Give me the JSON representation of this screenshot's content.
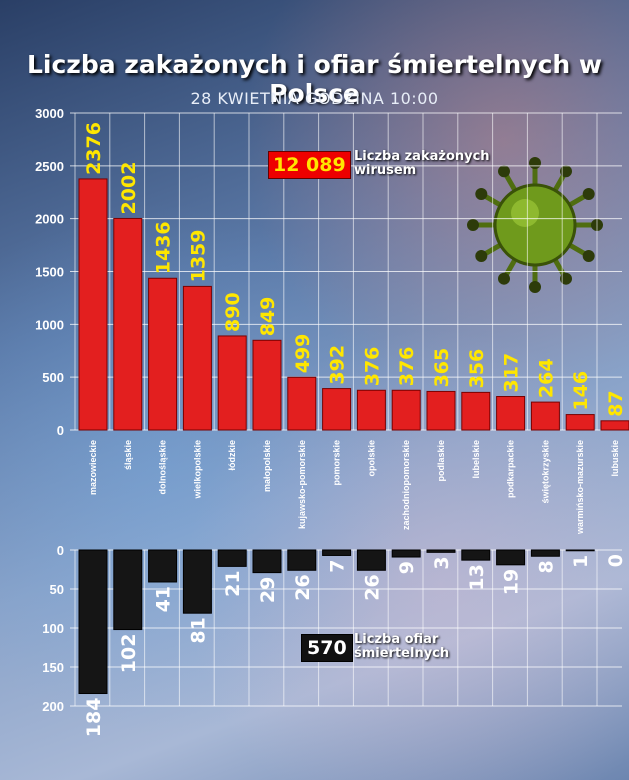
{
  "title": "Liczba zakażonych i ofiar śmiertelnych w Polsce",
  "subtitle": "28 KWIETNIA GODZINA 10:00",
  "legend_infected": {
    "number": "12 089",
    "line1": "Liczba zakażonych",
    "line2": "wirusem"
  },
  "legend_deaths": {
    "number": "570",
    "line1": "Liczba ofiar",
    "line2": "śmiertelnych"
  },
  "colors": {
    "infected_bar": "#e31f1f",
    "death_bar": "#151515",
    "infected_label": "#ffe600"
  },
  "chart_data": [
    {
      "type": "bar",
      "title": "Liczba zakażonych",
      "categories": [
        "mazowieckie",
        "śląskie",
        "dolnośląskie",
        "wielkopolskie",
        "łódzkie",
        "małopolskie",
        "kujawsko-pomorskie",
        "pomorskie",
        "opolskie",
        "zachodniopomorskie",
        "podlaskie",
        "lubelskie",
        "podkarpackie",
        "świętokrzyskie",
        "warmińsko-mazurskie",
        "lubuskie"
      ],
      "values": [
        2376,
        2002,
        1436,
        1359,
        890,
        849,
        499,
        392,
        376,
        376,
        365,
        356,
        317,
        264,
        146,
        87
      ],
      "ylim": [
        0,
        3000
      ],
      "yticks": [
        0,
        500,
        1000,
        1500,
        2000,
        2500,
        3000
      ],
      "grid": true
    },
    {
      "type": "bar",
      "title": "Liczba ofiar śmiertelnych",
      "categories": [
        "mazowieckie",
        "śląskie",
        "dolnośląskie",
        "wielkopolskie",
        "łódzkie",
        "małopolskie",
        "kujawsko-pomorskie",
        "pomorskie",
        "opolskie",
        "zachodniopomorskie",
        "podlaskie",
        "lubelskie",
        "podkarpackie",
        "świętokrzyskie",
        "warmińsko-mazurskie",
        "lubuskie"
      ],
      "values": [
        184,
        102,
        41,
        81,
        21,
        29,
        26,
        7,
        26,
        9,
        3,
        13,
        19,
        8,
        1,
        0
      ],
      "ylim": [
        0,
        200
      ],
      "yticks": [
        0,
        50,
        100,
        150,
        200
      ],
      "inverted": true,
      "grid": true
    }
  ]
}
